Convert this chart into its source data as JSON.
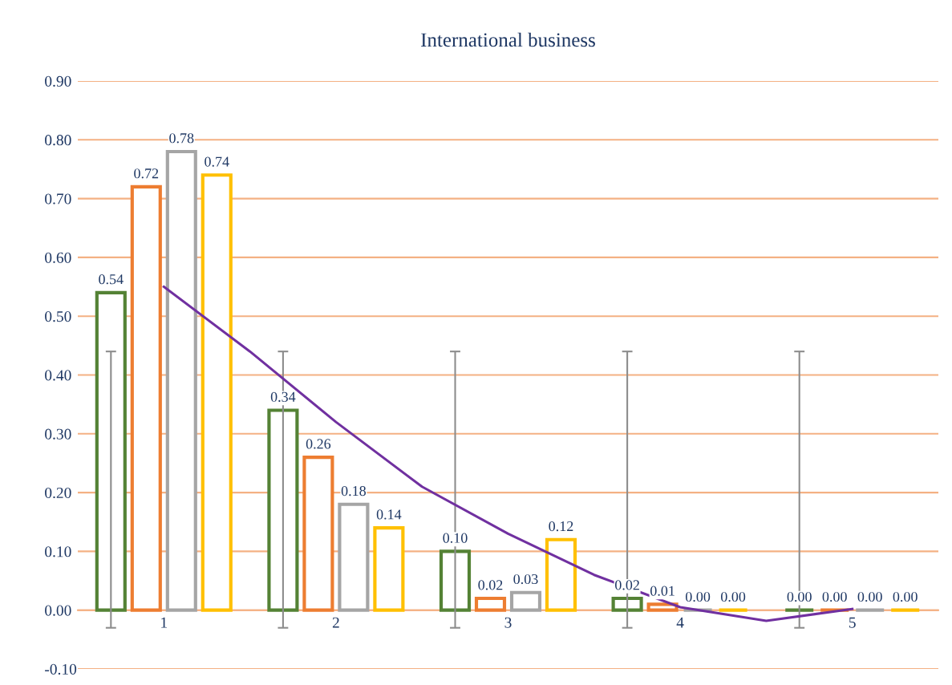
{
  "chart_data": {
    "type": "bar",
    "title": "International business",
    "x": [
      1,
      2,
      3,
      4,
      5
    ],
    "xlim": [
      0.5,
      5.5
    ],
    "xticks": [
      1,
      2,
      3,
      4,
      5
    ],
    "ylim": [
      -0.1,
      0.9
    ],
    "yticks": [
      {
        "value": -0.1,
        "label": "-0.10"
      },
      {
        "value": 0,
        "label": "0.00"
      },
      {
        "value": 0.1,
        "label": "0.10"
      },
      {
        "value": 0.2,
        "label": "0.20"
      },
      {
        "value": 0.3,
        "label": "0.30"
      },
      {
        "value": 0.4,
        "label": "0.40"
      },
      {
        "value": 0.5,
        "label": "0.50"
      },
      {
        "value": 0.6,
        "label": "0.60"
      },
      {
        "value": 0.7,
        "label": "0.70"
      },
      {
        "value": 0.8,
        "label": "0.80"
      },
      {
        "value": 0.9,
        "label": "0.90"
      }
    ],
    "grid": "y",
    "series": [
      {
        "color": "#548235",
        "values": [
          0.54,
          0.34,
          0.1,
          0.02,
          0.0
        ],
        "value_labels": [
          "0.54",
          "0.34",
          "0.10",
          "0.02",
          "0.00"
        ],
        "errors": [
          [
            -0.03,
            0.44
          ],
          [
            -0.03,
            0.44
          ],
          [
            -0.03,
            0.44
          ],
          [
            -0.03,
            0.44
          ],
          [
            -0.03,
            0.44
          ]
        ]
      },
      {
        "color": "#ed7d31",
        "values": [
          0.72,
          0.26,
          0.02,
          0.01,
          0.0
        ],
        "value_labels": [
          "0.72",
          "0.26",
          "0.02",
          "0.01",
          "0.00"
        ]
      },
      {
        "color": "#a5a5a5",
        "values": [
          0.78,
          0.18,
          0.03,
          0.0,
          0.0
        ],
        "value_labels": [
          "0.78",
          "0.18",
          "0.03",
          "0.00",
          "0.00"
        ]
      },
      {
        "color": "#ffc000",
        "values": [
          0.74,
          0.14,
          0.12,
          0.0,
          0.0
        ],
        "value_labels": [
          "0.74",
          "0.14",
          "0.12",
          "0.00",
          "0.00"
        ]
      },
      {
        "type": "line",
        "color": "#7030a0",
        "x": [
          1,
          1.5,
          2,
          2.5,
          3,
          3.5,
          4,
          4.5,
          5
        ],
        "values": [
          0.55,
          0.44,
          0.32,
          0.21,
          0.13,
          0.06,
          0.005,
          -0.018,
          0.002
        ]
      }
    ]
  }
}
